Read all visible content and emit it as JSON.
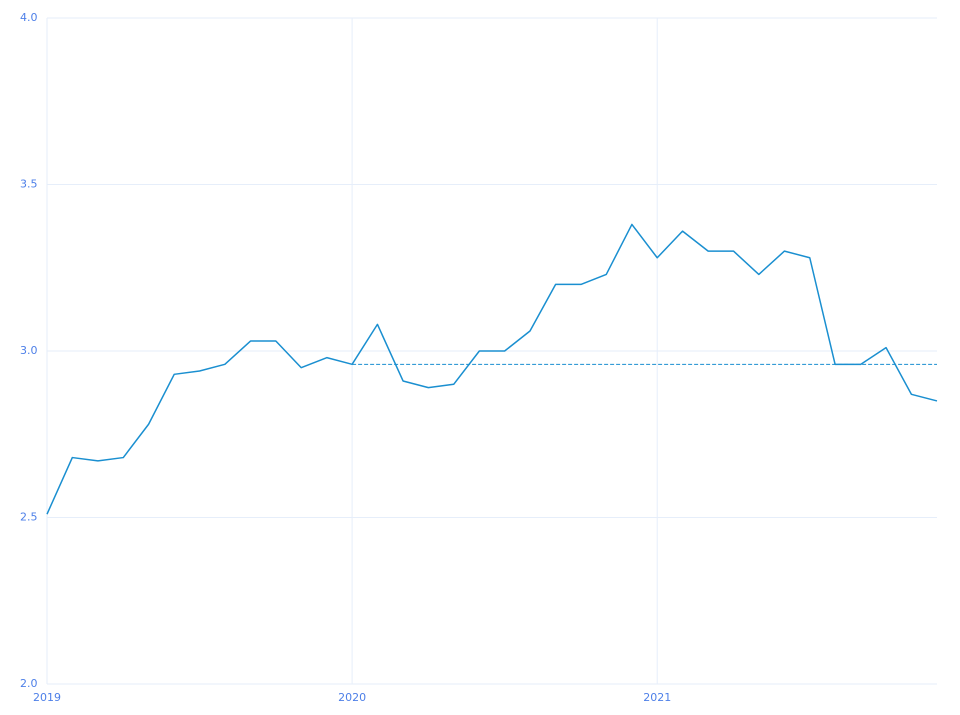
{
  "chart_data": {
    "type": "line",
    "x": [
      2019,
      2019.083,
      2019.167,
      2019.25,
      2019.333,
      2019.417,
      2019.5,
      2019.583,
      2019.667,
      2019.75,
      2019.833,
      2019.917,
      2020,
      2020.083,
      2020.167,
      2020.25,
      2020.333,
      2020.417,
      2020.5,
      2020.583,
      2020.667,
      2020.75,
      2020.833,
      2020.917,
      2021,
      2021.083,
      2021.167,
      2021.25,
      2021.333,
      2021.417,
      2021.5,
      2021.583,
      2021.667,
      2021.75,
      2021.833,
      2021.917
    ],
    "series": [
      {
        "color": "#1a8fd0",
        "values": [
          2.51,
          2.68,
          2.67,
          2.68,
          2.78,
          2.93,
          2.94,
          2.96,
          3.03,
          3.03,
          2.95,
          2.98,
          2.96,
          3.08,
          2.91,
          2.89,
          2.9,
          3.0,
          3.0,
          3.06,
          3.2,
          3.2,
          3.23,
          3.38,
          3.28,
          3.36,
          3.3,
          3.3,
          3.23,
          3.3,
          3.28,
          2.96,
          2.96,
          3.01,
          2.87,
          2.85
        ]
      }
    ],
    "reference_line": {
      "value": 2.96,
      "x_start": 2020,
      "color": "#1a8fd0"
    },
    "xlim": [
      2019,
      2021.917
    ],
    "xticks": [
      2019,
      2020,
      2021
    ],
    "ylim": [
      2.0,
      4.0
    ],
    "yticks": [
      {
        "value": 2.0,
        "label": "2.0"
      },
      2.5,
      {
        "value": 3.0,
        "label": "3.0"
      },
      3.5,
      {
        "value": 4.0,
        "label": "4.0"
      }
    ],
    "grid": true
  }
}
